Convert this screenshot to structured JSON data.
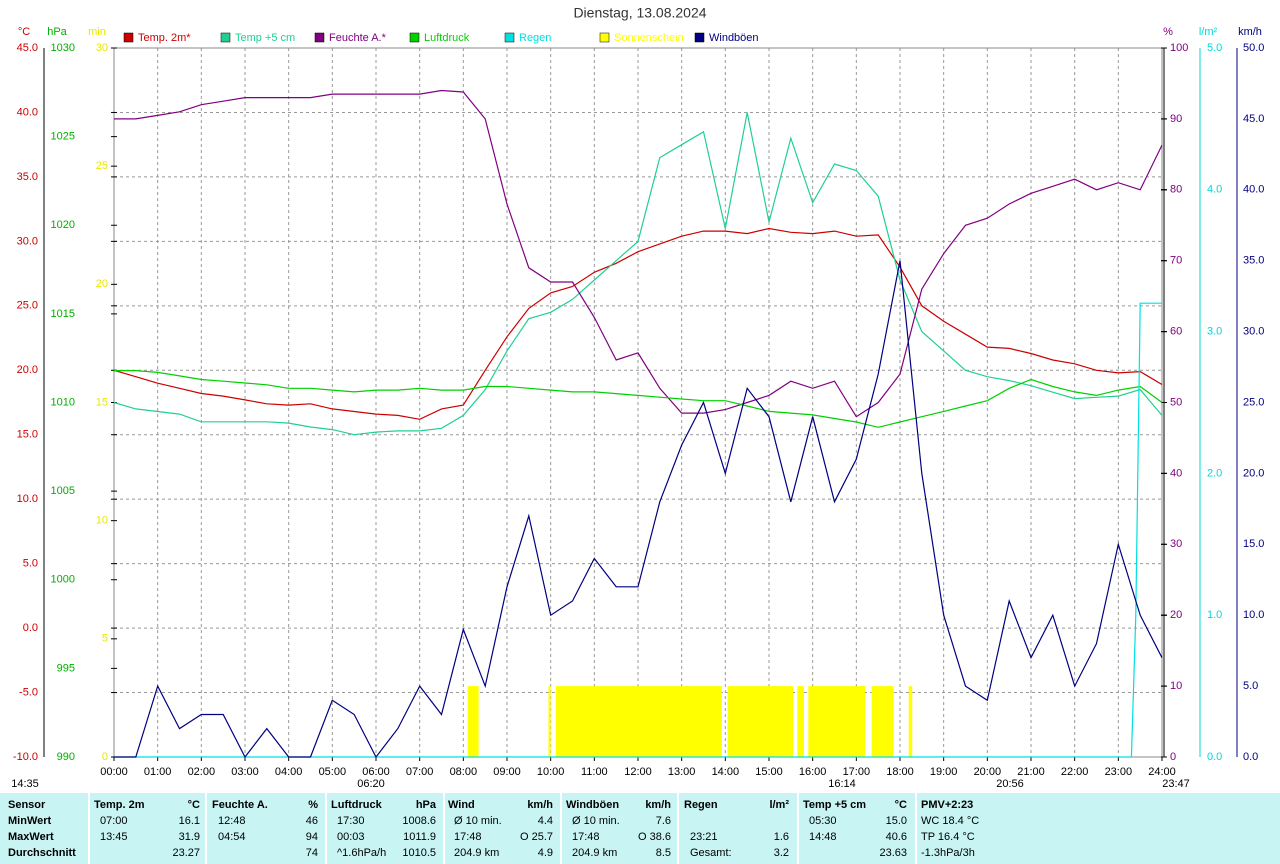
{
  "chart_data": {
    "type": "line",
    "title": "Dienstag, 13.08.2024",
    "grid": true,
    "xlim": [
      0,
      24
    ],
    "xticks": [
      {
        "value": 0,
        "label": "00:00"
      },
      {
        "value": 1,
        "label": "01:00"
      },
      {
        "value": 2,
        "label": "02:00"
      },
      {
        "value": 3,
        "label": "03:00"
      },
      {
        "value": 4,
        "label": "04:00"
      },
      {
        "value": 5,
        "label": "05:00"
      },
      {
        "value": 6,
        "label": "06:00"
      },
      {
        "value": 7,
        "label": "07:00"
      },
      {
        "value": 8,
        "label": "08:00"
      },
      {
        "value": 9,
        "label": "09:00"
      },
      {
        "value": 10,
        "label": "10:00"
      },
      {
        "value": 11,
        "label": "11:00"
      },
      {
        "value": 12,
        "label": "12:00"
      },
      {
        "value": 13,
        "label": "13:00"
      },
      {
        "value": 14,
        "label": "14:00"
      },
      {
        "value": 15,
        "label": "15:00"
      },
      {
        "value": 16,
        "label": "16:00"
      },
      {
        "value": 17,
        "label": "17:00"
      },
      {
        "value": 18,
        "label": "18:00"
      },
      {
        "value": 19,
        "label": "19:00"
      },
      {
        "value": 20,
        "label": "20:00"
      },
      {
        "value": 21,
        "label": "21:00"
      },
      {
        "value": 22,
        "label": "22:00"
      },
      {
        "value": 23,
        "label": "23:00"
      },
      {
        "value": 24,
        "label": "24:00"
      }
    ],
    "axes": [
      {
        "label": "°C",
        "color": "#cc0000",
        "side": "left",
        "lim": [
          -10,
          45
        ],
        "ticks": [
          {
            "value": -10,
            "label": "-10.0"
          },
          {
            "value": -5,
            "label": "-5.0"
          },
          {
            "value": 0,
            "label": "0.0"
          },
          {
            "value": 5,
            "label": "5.0"
          },
          {
            "value": 10,
            "label": "10.0"
          },
          {
            "value": 15,
            "label": "15.0"
          },
          {
            "value": 20,
            "label": "20.0"
          },
          {
            "value": 25,
            "label": "25.0"
          },
          {
            "value": 30,
            "label": "30.0"
          },
          {
            "value": 35,
            "label": "35.0"
          },
          {
            "value": 40,
            "label": "40.0"
          },
          {
            "value": 45,
            "label": "45.0"
          }
        ]
      },
      {
        "label": "hPa",
        "color": "#00b000",
        "side": "left",
        "lim": [
          990,
          1030
        ],
        "ticks": [
          990,
          995,
          1000,
          1005,
          1010,
          1015,
          1020,
          1025,
          1030
        ]
      },
      {
        "label": "min",
        "color": "#e8e800",
        "side": "left",
        "lim": [
          0,
          30
        ],
        "ticks": [
          0,
          5,
          10,
          15,
          20,
          25,
          30
        ]
      },
      {
        "label": "%",
        "color": "#800080",
        "side": "right",
        "lim": [
          0,
          100
        ],
        "ticks": [
          0,
          10,
          20,
          30,
          40,
          50,
          60,
          70,
          80,
          90,
          100
        ]
      },
      {
        "label": "l/m²",
        "color": "#00d8d8",
        "side": "right",
        "lim": [
          0,
          5
        ],
        "ticks": [
          {
            "value": 0,
            "label": "0.0"
          },
          {
            "value": 1,
            "label": "1.0"
          },
          {
            "value": 2,
            "label": "2.0"
          },
          {
            "value": 3,
            "label": "3.0"
          },
          {
            "value": 4,
            "label": "4.0"
          },
          {
            "value": 5,
            "label": "5.0"
          }
        ]
      },
      {
        "label": "km/h",
        "color": "#000080",
        "side": "right",
        "lim": [
          0,
          50
        ],
        "ticks": [
          {
            "value": 0,
            "label": "0.0"
          },
          {
            "value": 5,
            "label": "5.0"
          },
          {
            "value": 10,
            "label": "10.0"
          },
          {
            "value": 15,
            "label": "15.0"
          },
          {
            "value": 20,
            "label": "20.0"
          },
          {
            "value": 25,
            "label": "25.0"
          },
          {
            "value": 30,
            "label": "30.0"
          },
          {
            "value": 35,
            "label": "35.0"
          },
          {
            "value": 40,
            "label": "40.0"
          },
          {
            "value": 45,
            "label": "45.0"
          },
          {
            "value": 50,
            "label": "50.0"
          }
        ]
      }
    ],
    "x": [
      0,
      0.5,
      1,
      1.5,
      2,
      2.5,
      3,
      3.5,
      4,
      4.5,
      5,
      5.5,
      6,
      6.5,
      7,
      7.5,
      8,
      8.5,
      9,
      9.5,
      10,
      10.5,
      11,
      11.5,
      12,
      12.5,
      13,
      13.5,
      14,
      14.5,
      15,
      15.5,
      16,
      16.5,
      17,
      17.5,
      18,
      18.5,
      19,
      19.5,
      20,
      20.5,
      21,
      21.5,
      22,
      22.5,
      23,
      23.5,
      24
    ],
    "series": [
      {
        "name": "Temp. 2m*",
        "type": "line",
        "axis": 0,
        "color": "#cc0000",
        "values": [
          20.0,
          19.5,
          19.0,
          18.6,
          18.2,
          18.0,
          17.7,
          17.4,
          17.3,
          17.4,
          17.0,
          16.8,
          16.6,
          16.5,
          16.2,
          17.0,
          17.3,
          20.0,
          22.6,
          24.8,
          26.0,
          26.5,
          27.6,
          28.3,
          29.2,
          29.8,
          30.4,
          30.8,
          30.8,
          30.6,
          31.0,
          30.7,
          30.6,
          30.8,
          30.4,
          30.5,
          28.0,
          25.0,
          23.8,
          22.8,
          21.8,
          21.7,
          21.3,
          20.8,
          20.5,
          20.0,
          19.8,
          19.9,
          18.9
        ]
      },
      {
        "name": "Temp +5 cm",
        "type": "line",
        "axis": 0,
        "color": "#20d090",
        "values": [
          17.5,
          17.0,
          16.8,
          16.6,
          16.0,
          16.0,
          16.0,
          16.0,
          15.9,
          15.6,
          15.4,
          15.0,
          15.2,
          15.3,
          15.3,
          15.5,
          16.5,
          18.5,
          21.5,
          24.0,
          24.5,
          25.5,
          27.0,
          28.5,
          30.0,
          36.5,
          37.5,
          38.5,
          31.0,
          40.0,
          31.5,
          38.0,
          33.0,
          36.0,
          35.5,
          33.5,
          27.0,
          23.0,
          21.5,
          20.0,
          19.5,
          19.2,
          18.8,
          18.3,
          17.8,
          17.9,
          18.0,
          18.5,
          16.5
        ]
      },
      {
        "name": "Feuchte A.*",
        "type": "line",
        "axis": 3,
        "color": "#800080",
        "values": [
          90,
          90,
          90.5,
          91,
          92,
          92.5,
          93,
          93,
          93,
          93,
          93.5,
          93.5,
          93.5,
          93.5,
          93.5,
          94,
          93.8,
          90,
          78,
          69,
          67,
          67,
          62,
          56,
          57,
          52,
          48.5,
          48.5,
          49,
          50,
          51,
          53,
          52,
          53,
          48,
          50,
          54,
          66,
          71,
          75,
          76,
          78,
          79.5,
          80.5,
          81.5,
          80,
          81,
          80,
          86.3
        ]
      },
      {
        "name": "Luftdruck",
        "type": "line",
        "axis": 1,
        "color": "#00d000",
        "values": [
          1011.8,
          1011.8,
          1011.7,
          1011.5,
          1011.3,
          1011.2,
          1011.1,
          1011.0,
          1010.8,
          1010.8,
          1010.7,
          1010.6,
          1010.7,
          1010.7,
          1010.8,
          1010.7,
          1010.7,
          1010.9,
          1010.9,
          1010.8,
          1010.7,
          1010.6,
          1010.6,
          1010.5,
          1010.4,
          1010.3,
          1010.2,
          1010.1,
          1010.1,
          1009.8,
          1009.5,
          1009.4,
          1009.3,
          1009.1,
          1008.9,
          1008.6,
          1008.9,
          1009.2,
          1009.5,
          1009.8,
          1010.1,
          1010.8,
          1011.3,
          1010.9,
          1010.6,
          1010.4,
          1010.7,
          1010.9,
          1010.0
        ]
      },
      {
        "name": "Regen",
        "type": "line",
        "axis": 4,
        "color": "#00e0e0",
        "x": [
          0,
          23.3,
          23.4,
          23.5,
          24
        ],
        "values": [
          0,
          0,
          1.0,
          3.2,
          3.2
        ]
      },
      {
        "name": "Sonnenschein",
        "type": "bar",
        "axis": 2,
        "color": "#ffff00",
        "x": [
          8.1,
          9.95,
          10.12,
          14.05,
          15.65,
          15.9,
          17.35,
          18.2
        ],
        "x_end": [
          8.35,
          10.0,
          13.92,
          15.55,
          15.8,
          17.2,
          17.85,
          18.28
        ],
        "values": [
          3,
          3,
          3,
          3,
          3,
          3,
          3,
          3
        ]
      },
      {
        "name": "Windböen",
        "type": "line",
        "axis": 5,
        "color": "#000080",
        "values": [
          0,
          0,
          5,
          2,
          3,
          3,
          0,
          2,
          0,
          0,
          4,
          3,
          0,
          2,
          5,
          3,
          9,
          5,
          12,
          17,
          10,
          11,
          14,
          12,
          12,
          18,
          22,
          25,
          20,
          26,
          24,
          18,
          24,
          18,
          21,
          27,
          35,
          20,
          10,
          5,
          4,
          11,
          7,
          10,
          5,
          8,
          15,
          10,
          7
        ]
      }
    ],
    "annotations": [
      "14:35",
      "06:20",
      "16:14",
      "20:56",
      "23:47"
    ]
  },
  "stats": {
    "columns": [
      {
        "name": "Sensor"
      },
      {
        "name": "Temp. 2m",
        "unit": "°C"
      },
      {
        "name": "Feuchte A.",
        "unit": "%"
      },
      {
        "name": "Luftdruck",
        "unit": "hPa"
      },
      {
        "name": "Wind",
        "unit": "km/h"
      },
      {
        "name": "Windböen",
        "unit": "km/h"
      },
      {
        "name": "Regen",
        "unit": "l/m²"
      },
      {
        "name": "Temp +5 cm",
        "unit": "°C"
      },
      {
        "name": "PMV+2:23"
      }
    ],
    "rows": [
      {
        "label": "MinWert",
        "cells": [
          [
            "07:00",
            "16.1"
          ],
          [
            "12:48",
            "46"
          ],
          [
            "17:30",
            "1008.6"
          ],
          [
            "Ø 10 min.",
            "4.4"
          ],
          [
            "Ø 10 min.",
            "7.6"
          ],
          [],
          [
            "05:30",
            "15.0"
          ],
          [
            "WC 18.4 °C"
          ]
        ]
      },
      {
        "label": "MaxWert",
        "cells": [
          [
            "13:45",
            "31.9"
          ],
          [
            "04:54",
            "94"
          ],
          [
            "00:03",
            "1011.9"
          ],
          [
            "17:48",
            "O 25.7"
          ],
          [
            "17:48",
            "O 38.6"
          ],
          [
            "23:21",
            "1.6"
          ],
          [
            "14:48",
            "40.6"
          ],
          [
            "TP 16.4 °C"
          ]
        ]
      },
      {
        "label": "Durchschnitt",
        "cells": [
          [
            "23.27"
          ],
          [
            "74"
          ],
          [
            "^1.6hPa/h",
            "1010.5"
          ],
          [
            "204.9 km",
            "4.9"
          ],
          [
            "204.9 km",
            "8.5"
          ],
          [
            "Gesamt:",
            "3.2"
          ],
          [
            "23.63"
          ],
          [
            "-1.3hPa/3h"
          ]
        ]
      }
    ]
  }
}
